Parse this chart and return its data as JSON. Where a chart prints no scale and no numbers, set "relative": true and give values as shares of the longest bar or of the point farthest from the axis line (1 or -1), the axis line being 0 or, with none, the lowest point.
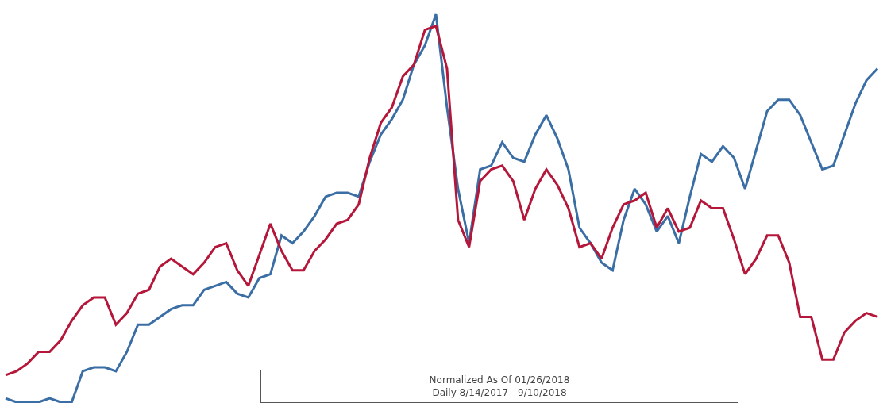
{
  "chart_data": {
    "type": "line",
    "relative": true,
    "marker": "none",
    "line_style": "solid",
    "annotations": [
      "Normalized As Of 01/26/2018",
      "Daily 8/14/2017 - 9/10/2018"
    ],
    "categories": [
      null,
      null,
      null,
      null,
      null,
      null,
      null,
      null,
      null,
      null,
      null,
      null,
      null,
      null,
      null,
      null,
      null,
      null,
      null,
      null,
      null,
      null,
      null,
      null,
      null,
      null,
      null,
      null,
      null,
      null,
      null,
      null,
      null,
      null,
      null,
      null,
      null,
      null,
      null,
      null,
      null,
      null,
      null,
      null,
      null,
      null,
      null,
      null,
      null,
      null,
      null,
      null,
      null,
      null,
      null,
      null,
      null,
      null,
      null,
      null,
      null,
      null,
      null,
      null,
      null,
      null,
      null,
      null,
      null,
      null,
      null,
      null,
      null,
      null,
      null,
      null,
      null,
      null,
      null,
      null
    ],
    "series": [
      {
        "color": "#3a6ea5",
        "values": [
          0.01,
          0.0,
          0.0,
          0.0,
          0.01,
          0.0,
          0.0,
          0.08,
          0.09,
          0.09,
          0.08,
          0.13,
          0.2,
          0.2,
          0.22,
          0.24,
          0.25,
          0.25,
          0.29,
          0.3,
          0.31,
          0.28,
          0.27,
          0.32,
          0.33,
          0.43,
          0.41,
          0.44,
          0.48,
          0.53,
          0.54,
          0.54,
          0.53,
          0.62,
          0.69,
          0.73,
          0.78,
          0.87,
          0.92,
          1.0,
          0.76,
          0.55,
          0.41,
          0.6,
          0.61,
          0.67,
          0.63,
          0.62,
          0.69,
          0.74,
          0.68,
          0.6,
          0.45,
          0.41,
          0.36,
          0.34,
          0.47,
          0.55,
          0.51,
          0.44,
          0.48,
          0.41,
          0.53,
          0.64,
          0.62,
          0.66,
          0.63,
          0.55,
          0.65,
          0.75,
          0.78,
          0.78,
          0.74,
          0.67,
          0.6,
          0.61,
          0.69,
          0.77,
          0.83,
          0.86
        ]
      },
      {
        "color": "#b5173a",
        "values": [
          0.07,
          0.08,
          0.1,
          0.13,
          0.13,
          0.16,
          0.21,
          0.25,
          0.27,
          0.27,
          0.2,
          0.23,
          0.28,
          0.29,
          0.35,
          0.37,
          0.35,
          0.33,
          0.36,
          0.4,
          0.41,
          0.34,
          0.3,
          0.38,
          0.46,
          0.39,
          0.34,
          0.34,
          0.39,
          0.42,
          0.46,
          0.47,
          0.51,
          0.63,
          0.72,
          0.76,
          0.84,
          0.87,
          0.96,
          0.97,
          0.86,
          0.47,
          0.4,
          0.57,
          0.6,
          0.61,
          0.57,
          0.47,
          0.55,
          0.6,
          0.56,
          0.5,
          0.4,
          0.41,
          0.37,
          0.45,
          0.51,
          0.52,
          0.54,
          0.45,
          0.5,
          0.44,
          0.45,
          0.52,
          0.5,
          0.5,
          0.42,
          0.33,
          0.37,
          0.43,
          0.43,
          0.36,
          0.22,
          0.22,
          0.11,
          0.11,
          0.18,
          0.21,
          0.23,
          0.22
        ]
      }
    ]
  }
}
